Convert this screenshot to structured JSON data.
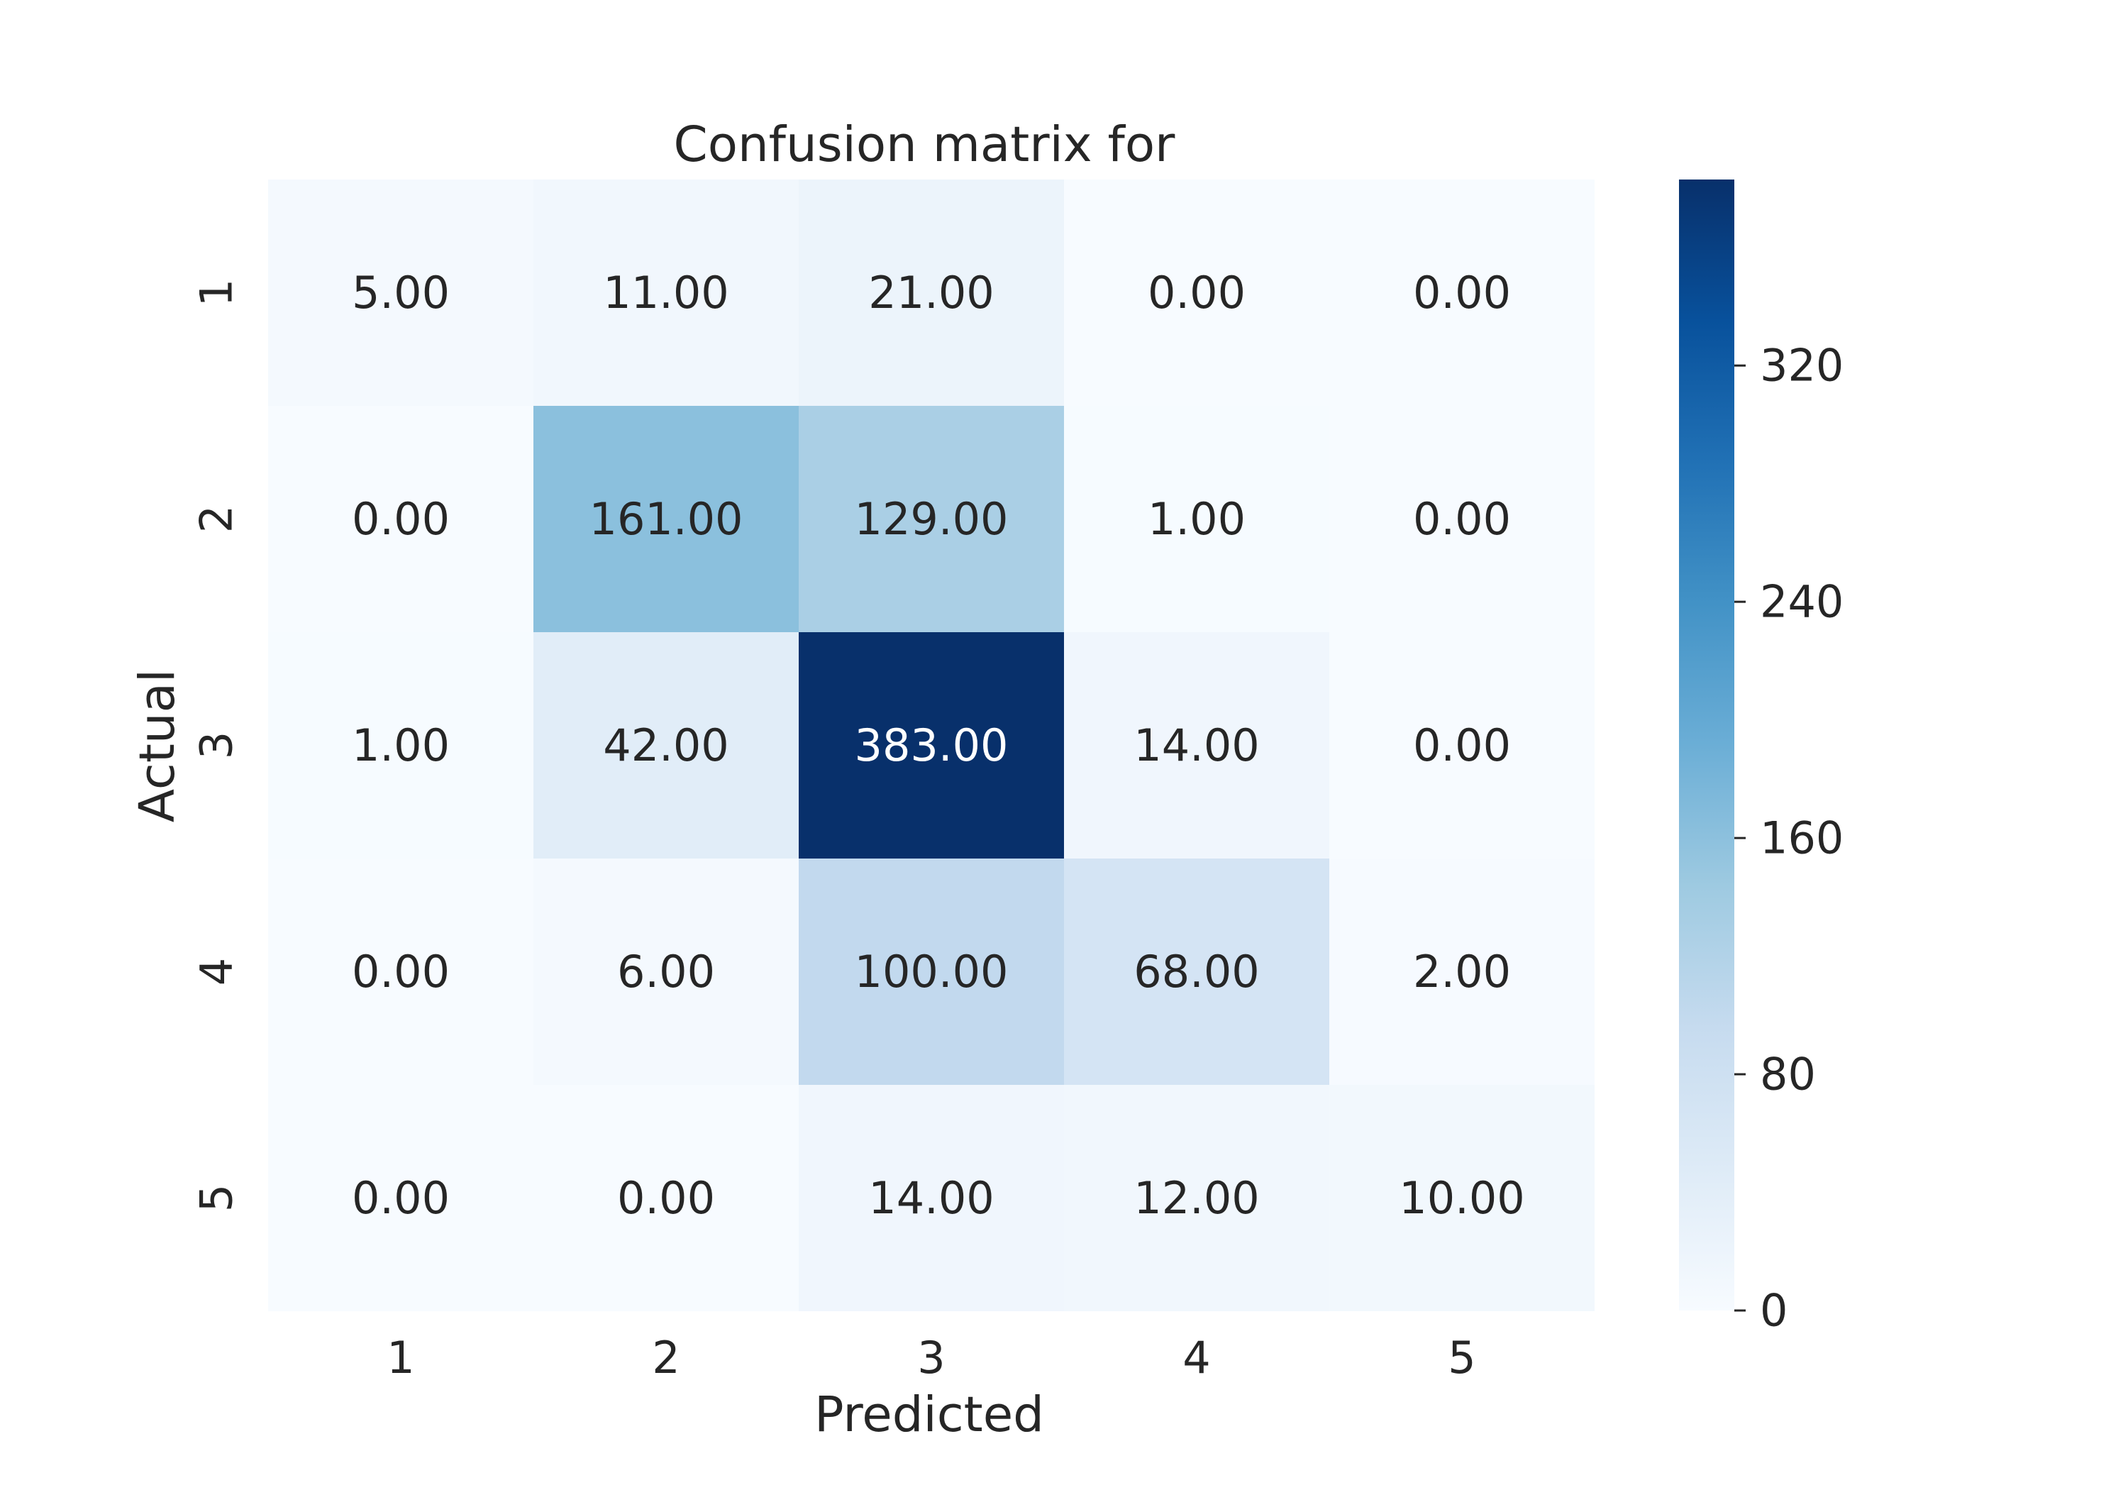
{
  "chart_data": {
    "type": "heatmap",
    "title": "Confusion matrix for",
    "xlabel": "Predicted",
    "ylabel": "Actual",
    "x_categories": [
      "1",
      "2",
      "3",
      "4",
      "5"
    ],
    "y_categories": [
      "1",
      "2",
      "3",
      "4",
      "5"
    ],
    "values": [
      [
        5,
        11,
        21,
        0,
        0
      ],
      [
        0,
        161,
        129,
        1,
        0
      ],
      [
        1,
        42,
        383,
        14,
        0
      ],
      [
        0,
        6,
        100,
        68,
        2
      ],
      [
        0,
        0,
        14,
        12,
        10
      ]
    ],
    "value_format": "2 decimals",
    "colormap": "Blues",
    "colorbar": {
      "range": [
        0,
        383
      ],
      "ticks": [
        0,
        80,
        160,
        240,
        320
      ]
    }
  }
}
